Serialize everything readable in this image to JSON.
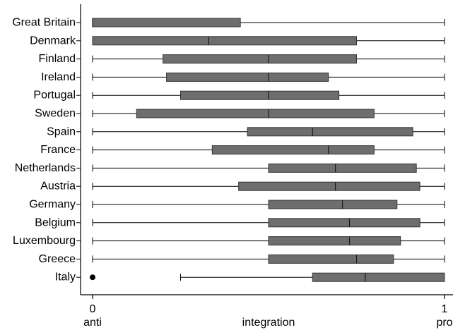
{
  "chart_data": {
    "type": "boxplot",
    "orientation": "horizontal",
    "xlim": [
      0,
      1
    ],
    "x_ticks": [
      {
        "value": 0,
        "label": "0"
      },
      {
        "value": 1,
        "label": "1"
      }
    ],
    "x_axis_annotations": [
      {
        "value": 0,
        "text": "anti"
      },
      {
        "value": 0.5,
        "text": "integration"
      },
      {
        "value": 1,
        "text": "pro"
      }
    ],
    "box_color": "#6e6e6e",
    "outlier_color": "#000000",
    "categories": [
      "Great Britain",
      "Denmark",
      "Finland",
      "Ireland",
      "Portugal",
      "Sweden",
      "Spain",
      "France",
      "Netherlands",
      "Austria",
      "Germany",
      "Belgium",
      "Luxembourg",
      "Greece",
      "Italy"
    ],
    "boxes": [
      {
        "name": "Great Britain",
        "whisker_low": 0.0,
        "q1": 0.0,
        "median": 0.0,
        "q3": 0.42,
        "whisker_high": 1.0
      },
      {
        "name": "Denmark",
        "whisker_low": 0.0,
        "q1": 0.0,
        "median": 0.33,
        "q3": 0.75,
        "whisker_high": 1.0
      },
      {
        "name": "Finland",
        "whisker_low": 0.0,
        "q1": 0.2,
        "median": 0.5,
        "q3": 0.75,
        "whisker_high": 1.0
      },
      {
        "name": "Ireland",
        "whisker_low": 0.0,
        "q1": 0.21,
        "median": 0.5,
        "q3": 0.67,
        "whisker_high": 1.0
      },
      {
        "name": "Portugal",
        "whisker_low": 0.0,
        "q1": 0.25,
        "median": 0.5,
        "q3": 0.7,
        "whisker_high": 1.0
      },
      {
        "name": "Sweden",
        "whisker_low": 0.0,
        "q1": 0.125,
        "median": 0.5,
        "q3": 0.8,
        "whisker_high": 1.0
      },
      {
        "name": "Spain",
        "whisker_low": 0.0,
        "q1": 0.44,
        "median": 0.625,
        "q3": 0.91,
        "whisker_high": 1.0
      },
      {
        "name": "France",
        "whisker_low": 0.0,
        "q1": 0.34,
        "median": 0.67,
        "q3": 0.8,
        "whisker_high": 1.0
      },
      {
        "name": "Netherlands",
        "whisker_low": 0.0,
        "q1": 0.5,
        "median": 0.69,
        "q3": 0.92,
        "whisker_high": 1.0
      },
      {
        "name": "Austria",
        "whisker_low": 0.0,
        "q1": 0.415,
        "median": 0.69,
        "q3": 0.93,
        "whisker_high": 1.0
      },
      {
        "name": "Germany",
        "whisker_low": 0.0,
        "q1": 0.5,
        "median": 0.71,
        "q3": 0.865,
        "whisker_high": 1.0
      },
      {
        "name": "Belgium",
        "whisker_low": 0.0,
        "q1": 0.5,
        "median": 0.73,
        "q3": 0.93,
        "whisker_high": 1.0
      },
      {
        "name": "Luxembourg",
        "whisker_low": 0.0,
        "q1": 0.5,
        "median": 0.73,
        "q3": 0.875,
        "whisker_high": 1.0
      },
      {
        "name": "Greece",
        "whisker_low": 0.0,
        "q1": 0.5,
        "median": 0.75,
        "q3": 0.855,
        "whisker_high": 1.0
      },
      {
        "name": "Italy",
        "whisker_low": 0.25,
        "q1": 0.625,
        "median": 0.775,
        "q3": 1.0,
        "whisker_high": 1.0,
        "outliers": [
          0.0
        ]
      }
    ],
    "grid": false,
    "legend": "none"
  }
}
